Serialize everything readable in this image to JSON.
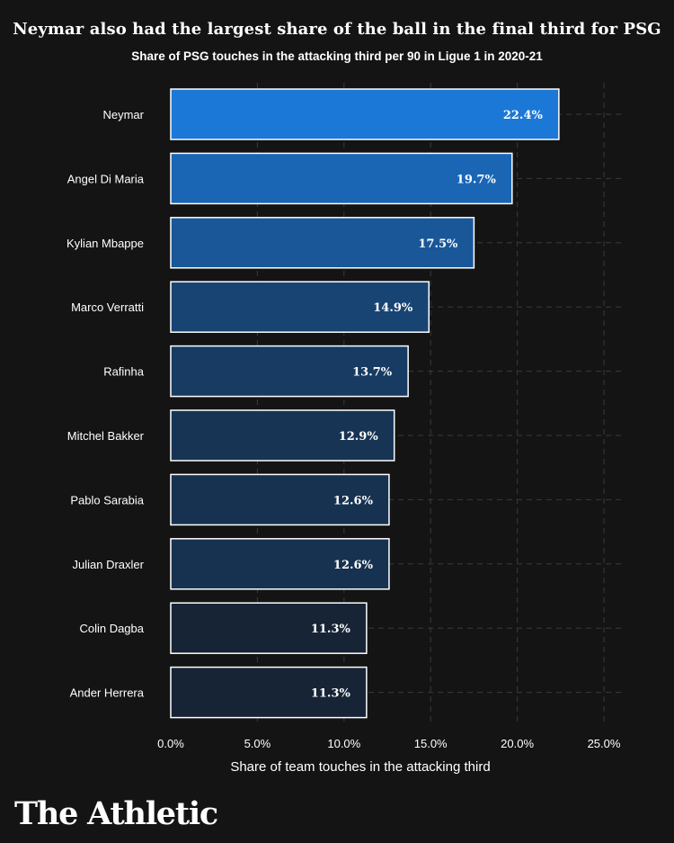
{
  "title": "Neymar also had the largest share of the ball in the final third for PSG",
  "subtitle": "Share of PSG touches in the attacking third per 90 in Ligue 1 in 2020-21",
  "logo_text": "The Athletic",
  "chart_data": {
    "type": "bar",
    "orientation": "horizontal",
    "title": "Neymar also had the largest share of the ball in the final third for PSG",
    "subtitle": "Share of PSG touches in the attacking third per 90 in Ligue 1 in 2020-21",
    "xlabel": "Share of team touches in the attacking third",
    "ylabel": "",
    "categories": [
      "Neymar",
      "Angel Di Maria",
      "Kylian Mbappe",
      "Marco Verratti",
      "Rafinha",
      "Mitchel Bakker",
      "Pablo Sarabia",
      "Julian Draxler",
      "Colin Dagba",
      "Ander Herrera"
    ],
    "values": [
      22.4,
      19.7,
      17.5,
      14.9,
      13.7,
      12.9,
      12.6,
      12.6,
      11.3,
      11.3
    ],
    "value_labels": [
      "22.4%",
      "19.7%",
      "17.5%",
      "14.9%",
      "13.7%",
      "12.9%",
      "12.6%",
      "12.6%",
      "11.3%",
      "11.3%"
    ],
    "xlim": [
      0,
      25
    ],
    "xticks": [
      0,
      5,
      10,
      15,
      20,
      25
    ],
    "xtick_labels": [
      "0.0%",
      "5.0%",
      "10.0%",
      "15.0%",
      "20.0%",
      "25.0%"
    ],
    "grid": true,
    "legend": "none",
    "colors": {
      "background": "#141414",
      "bar_high": "#1b78d6",
      "bar_low": "#162436",
      "bar_outline": "#ffffff",
      "grid": "#3a3a3a",
      "text": "#ffffff"
    }
  }
}
